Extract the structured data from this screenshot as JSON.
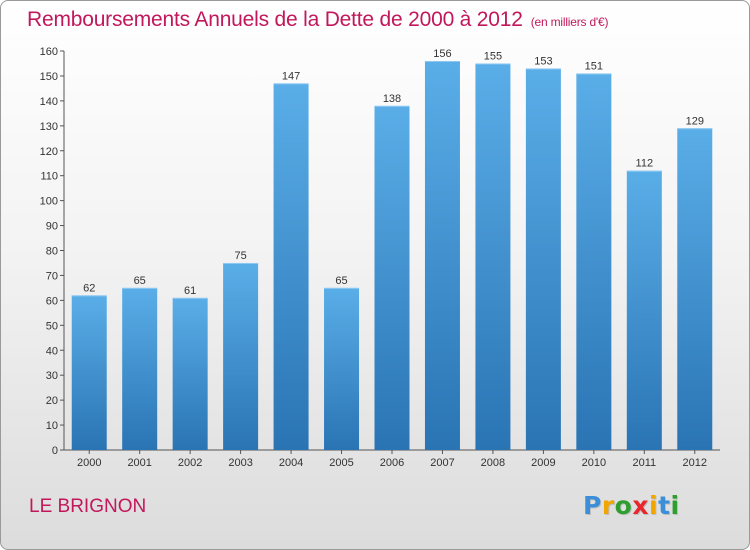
{
  "header": {
    "title": "Remboursements Annuels de la Dette de 2000 à 2012",
    "unit": "(en milliers d'€)"
  },
  "footer": {
    "place": "LE BRIGNON"
  },
  "brand": {
    "letters": [
      "P",
      "r",
      "o",
      "x",
      "i",
      "t",
      "i"
    ],
    "colors": [
      "#3a8fd8",
      "#f0a500",
      "#2e9e2e",
      "#e8262b",
      "#f0a500",
      "#3a8fd8",
      "#2e9e2e"
    ]
  },
  "colors": {
    "title": "#c2185b",
    "bar_light": "#5aaee8",
    "bar_dark": "#2a74b4"
  },
  "chart_data": {
    "type": "bar",
    "title": "Remboursements Annuels de la Dette de 2000 à 2012",
    "subtitle": "(en milliers d'€)",
    "categories": [
      "2000",
      "2001",
      "2002",
      "2003",
      "2004",
      "2005",
      "2006",
      "2007",
      "2008",
      "2009",
      "2010",
      "2011",
      "2012"
    ],
    "values": [
      62,
      65,
      61,
      75,
      147,
      65,
      138,
      156,
      155,
      153,
      151,
      112,
      129
    ],
    "ylim": [
      0,
      160
    ],
    "yticks": [
      0,
      10,
      20,
      30,
      40,
      50,
      60,
      70,
      80,
      90,
      100,
      110,
      120,
      130,
      140,
      150,
      160
    ],
    "grid": false,
    "xlabel": "",
    "ylabel": ""
  }
}
